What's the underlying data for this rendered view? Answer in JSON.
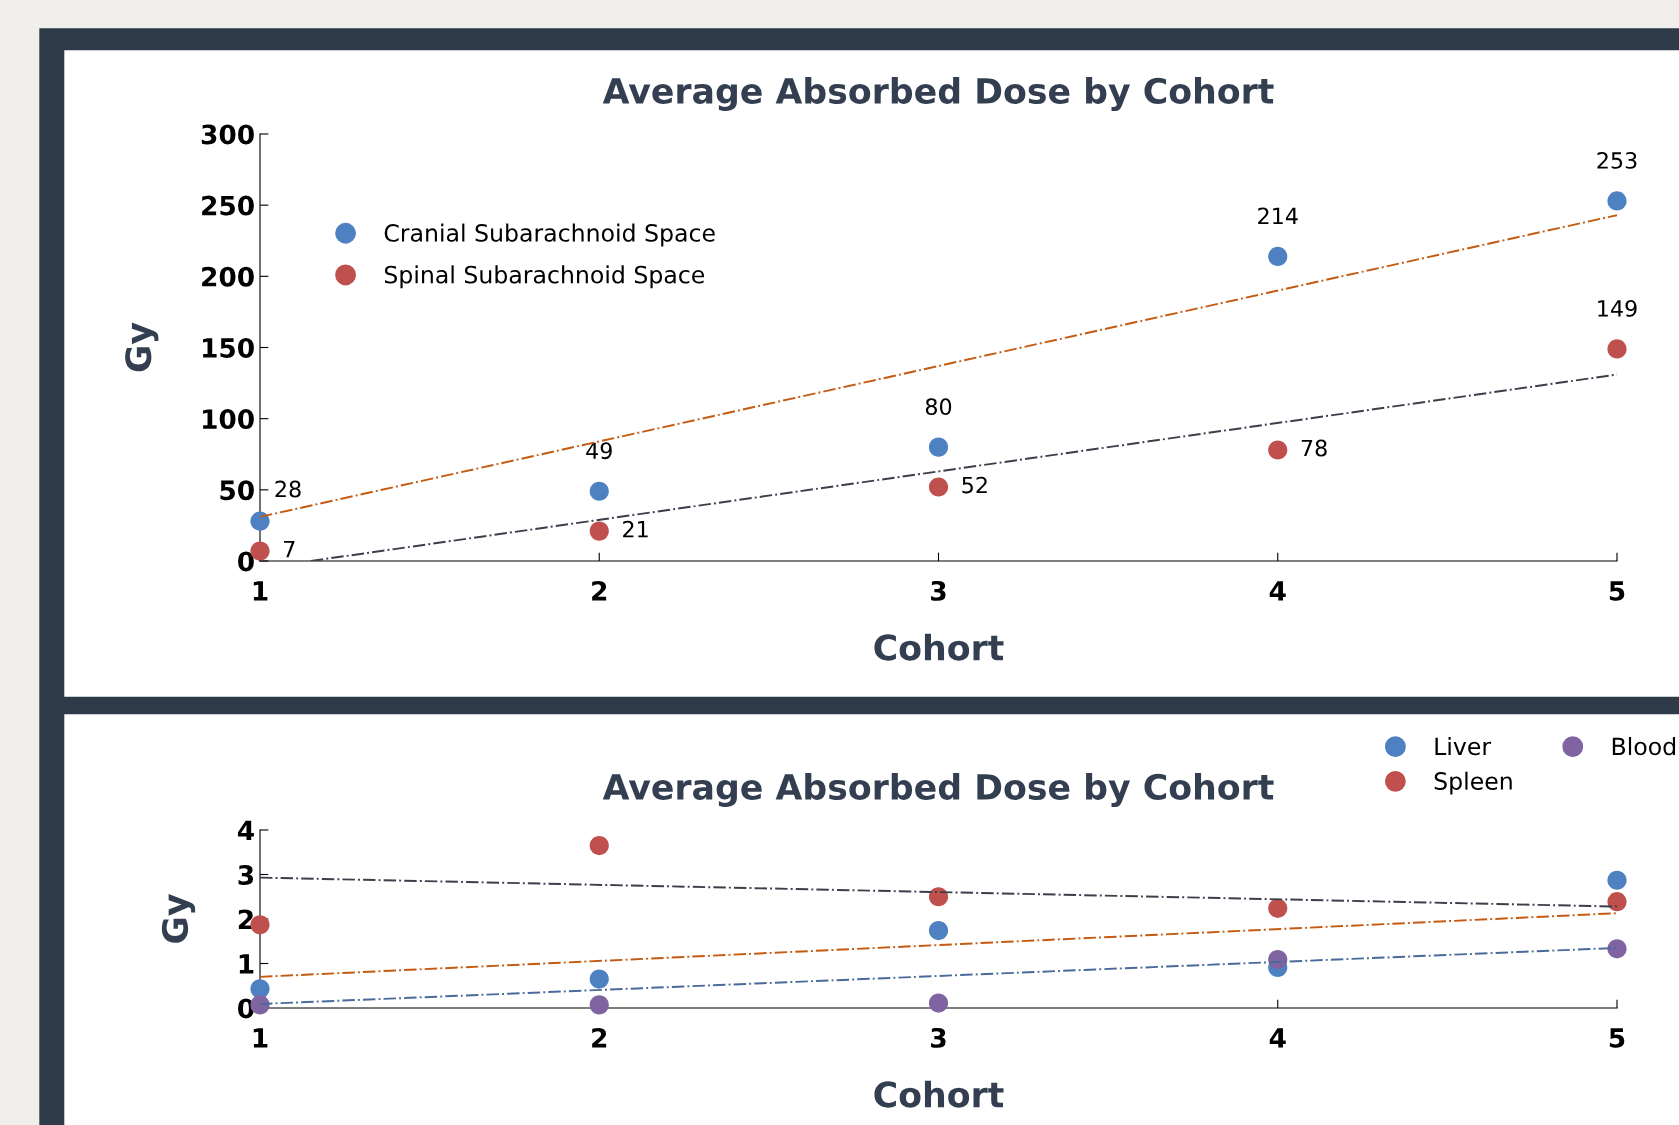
{
  "chart_data": [
    {
      "type": "scatter",
      "title": "Average Absorbed Dose by Cohort",
      "xlabel": "Cohort",
      "ylabel": "Gy",
      "xlim": [
        1,
        5
      ],
      "xticks": [
        1,
        2,
        3,
        4,
        5
      ],
      "ylim": [
        0,
        300
      ],
      "yticks": [
        0,
        50,
        100,
        150,
        200,
        250,
        300
      ],
      "grid": false,
      "legend": "top left",
      "series": [
        {
          "name": "Cranial Subarachnoid Space",
          "color": "#4e81c2",
          "x": [
            1,
            2,
            3,
            4,
            5
          ],
          "values": [
            28,
            49,
            80,
            214,
            253
          ],
          "marker": "circle",
          "value_labels": [
            "28",
            "49",
            "80",
            "214",
            "253"
          ]
        },
        {
          "name": "Spinal Subarachnoid Space",
          "color": "#c0504d",
          "x": [
            1,
            2,
            3,
            4,
            5
          ],
          "values": [
            7,
            21,
            52,
            78,
            149
          ],
          "marker": "circle",
          "value_labels": [
            "7",
            "21",
            "52",
            "78",
            "149"
          ]
        },
        {
          "type": "line",
          "color": "#c55a11",
          "line_style": "dashdot",
          "x": [
            1,
            5
          ],
          "values": [
            31,
            243
          ]
        },
        {
          "type": "line",
          "color": "#3a3f4a",
          "line_style": "dashdot",
          "x": [
            1.15,
            5
          ],
          "values": [
            0,
            131
          ]
        }
      ]
    },
    {
      "type": "scatter",
      "title": "Average Absorbed Dose by Cohort",
      "xlabel": "Cohort",
      "ylabel": "Gy",
      "xlim": [
        1,
        5
      ],
      "xticks": [
        1,
        2,
        3,
        4,
        5
      ],
      "ylim": [
        0,
        4
      ],
      "yticks": [
        0,
        1,
        2,
        3,
        4
      ],
      "grid": false,
      "legend": "top right",
      "series": [
        {
          "name": "Liver",
          "color": "#4e81c2",
          "x": [
            1,
            2,
            3,
            4,
            5
          ],
          "values": [
            0.43,
            0.65,
            1.74,
            0.91,
            2.87
          ],
          "marker": "circle"
        },
        {
          "name": "Spleen",
          "color": "#c0504d",
          "x": [
            1,
            2,
            3,
            4,
            5
          ],
          "values": [
            1.87,
            3.65,
            2.5,
            2.24,
            2.39
          ],
          "marker": "circle"
        },
        {
          "name": "Blood",
          "color": "#8064a2",
          "x": [
            1,
            2,
            3,
            4,
            5
          ],
          "values": [
            0.07,
            0.07,
            0.11,
            1.09,
            1.33
          ],
          "marker": "circle"
        },
        {
          "type": "line",
          "color": "#3a3f4a",
          "line_style": "dashdot",
          "x": [
            1,
            5
          ],
          "values": [
            2.93,
            2.28
          ]
        },
        {
          "type": "line",
          "color": "#c55a11",
          "line_style": "dashdot",
          "x": [
            1,
            5
          ],
          "values": [
            0.7,
            2.13
          ]
        },
        {
          "type": "line",
          "color": "#4a6a9a",
          "line_style": "dashdot",
          "x": [
            1,
            5
          ],
          "values": [
            0.09,
            1.35
          ]
        }
      ]
    }
  ]
}
